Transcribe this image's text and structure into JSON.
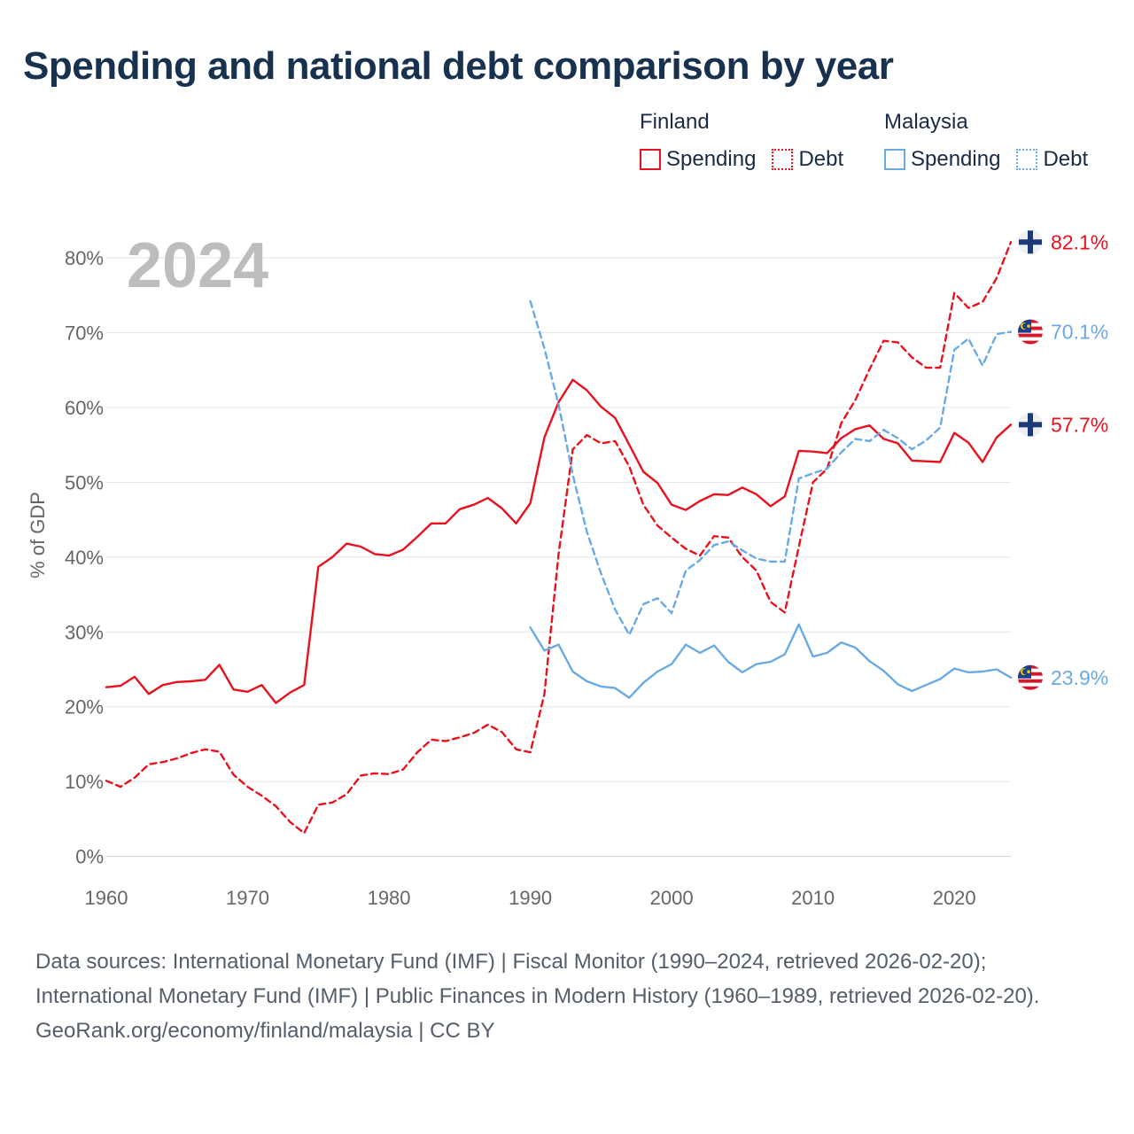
{
  "title": "Spending and national debt comparison by year",
  "legend": {
    "finland": {
      "name": "Finland",
      "spending": "Spending",
      "debt": "Debt"
    },
    "malaysia": {
      "name": "Malaysia",
      "spending": "Spending",
      "debt": "Debt"
    }
  },
  "colors": {
    "finland": "#e8111d",
    "malaysia": "#6aaae4"
  },
  "footer": {
    "sources": "Data sources: International Monetary Fund (IMF) | Fiscal Monitor (1990–2024, retrieved 2026-02-20); International Monetary Fund (IMF) | Public Finances in Modern History (1960–1989, retrieved 2026-02-20).",
    "credit": "GeoRank.org/economy/finland/malaysia | CC BY"
  },
  "chart_data": {
    "type": "line",
    "year_label": "2024",
    "ylabel": "% of GDP",
    "xlim": [
      1960,
      2024
    ],
    "ylim": [
      0,
      85
    ],
    "x_ticks": [
      1960,
      1970,
      1980,
      1990,
      2000,
      2010,
      2020
    ],
    "y_ticks": [
      "0%",
      "10%",
      "20%",
      "30%",
      "40%",
      "50%",
      "60%",
      "70%",
      "80%"
    ],
    "grid": true,
    "series": [
      {
        "name": "Finland Spending",
        "country": "finland",
        "style": "solid",
        "start": 1960,
        "end_label": "57.7%",
        "values": [
          22.6,
          22.8,
          24.0,
          21.7,
          22.9,
          23.3,
          23.4,
          23.6,
          25.6,
          22.3,
          22.0,
          22.9,
          20.5,
          21.9,
          22.9,
          38.7,
          40.0,
          41.8,
          41.4,
          40.4,
          40.2,
          41.0,
          42.7,
          44.5,
          44.5,
          46.4,
          47.0,
          47.9,
          46.5,
          44.5,
          47.2,
          56.0,
          60.7,
          63.7,
          62.3,
          60.1,
          58.6,
          55.0,
          51.4,
          49.9,
          47.0,
          46.3,
          47.5,
          48.4,
          48.3,
          49.3,
          48.4,
          46.8,
          48.1,
          54.2,
          54.1,
          53.9,
          55.9,
          57.1,
          57.6,
          55.8,
          55.2,
          52.9,
          52.8,
          52.7,
          56.6,
          55.3,
          52.7,
          56.0,
          57.7
        ]
      },
      {
        "name": "Finland Debt",
        "country": "finland",
        "style": "dashed",
        "start": 1960,
        "end_label": "82.1%",
        "values": [
          10.1,
          9.3,
          10.5,
          12.3,
          12.6,
          13.1,
          13.8,
          14.3,
          14.0,
          10.9,
          9.3,
          8.1,
          6.7,
          4.6,
          3.1,
          6.9,
          7.2,
          8.3,
          10.8,
          11.1,
          11.0,
          11.6,
          13.9,
          15.6,
          15.4,
          15.9,
          16.5,
          17.6,
          16.6,
          14.3,
          13.9,
          21.7,
          40.4,
          54.4,
          56.3,
          55.2,
          55.5,
          52.1,
          47.0,
          44.2,
          42.6,
          41.1,
          40.2,
          42.8,
          42.6,
          40.0,
          38.2,
          34.0,
          32.6,
          41.4,
          50.0,
          51.8,
          57.9,
          61.0,
          65.1,
          68.9,
          68.7,
          66.7,
          65.3,
          65.3,
          75.3,
          73.3,
          74.1,
          77.3,
          82.1
        ]
      },
      {
        "name": "Malaysia Spending",
        "country": "malaysia",
        "style": "solid",
        "start": 1990,
        "end_label": "23.9%",
        "values": [
          30.6,
          27.5,
          28.3,
          24.7,
          23.4,
          22.7,
          22.5,
          21.2,
          23.2,
          24.7,
          25.7,
          28.3,
          27.2,
          28.2,
          26.0,
          24.6,
          25.7,
          26.0,
          27.0,
          31.0,
          26.7,
          27.2,
          28.6,
          27.9,
          26.1,
          24.8,
          23.0,
          22.1,
          22.9,
          23.7,
          25.1,
          24.6,
          24.7,
          25.0,
          23.9
        ]
      },
      {
        "name": "Malaysia Debt",
        "country": "malaysia",
        "style": "dashed",
        "start": 1990,
        "end_label": "70.1%",
        "values": [
          74.2,
          67.9,
          60.4,
          51.0,
          43.4,
          37.8,
          33.0,
          29.6,
          33.7,
          34.5,
          32.5,
          38.2,
          39.6,
          41.6,
          42.1,
          40.9,
          39.8,
          39.4,
          39.4,
          50.5,
          51.2,
          51.8,
          54.0,
          55.8,
          55.5,
          57.0,
          55.9,
          54.4,
          55.6,
          57.3,
          67.7,
          69.2,
          65.6,
          69.8,
          70.1
        ]
      }
    ]
  }
}
